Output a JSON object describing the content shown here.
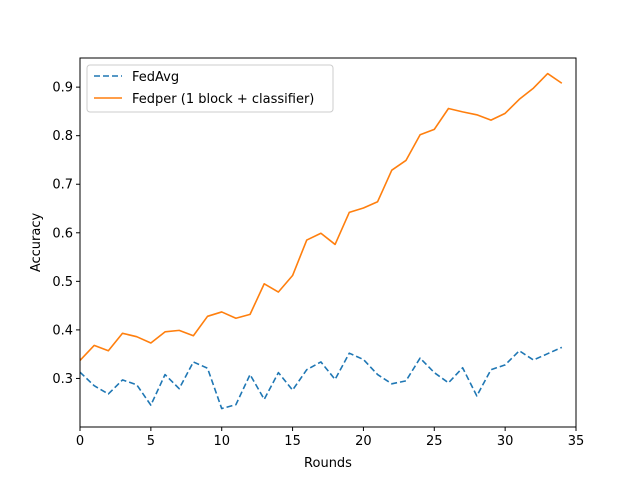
{
  "chart_data": {
    "type": "line",
    "title": "",
    "xlabel": "Rounds",
    "ylabel": "Accuracy",
    "xlim": [
      0,
      35
    ],
    "ylim": [
      0.2,
      0.96
    ],
    "xticks": [
      0,
      5,
      10,
      15,
      20,
      25,
      30,
      35
    ],
    "xtick_labels": [
      "0",
      "5",
      "10",
      "15",
      "20",
      "25",
      "30",
      "35"
    ],
    "yticks": [
      0.3,
      0.4,
      0.5,
      0.6,
      0.7,
      0.8,
      0.9
    ],
    "ytick_labels": [
      "0.3",
      "0.4",
      "0.5",
      "0.6",
      "0.7",
      "0.8",
      "0.9"
    ],
    "grid": false,
    "legend_position": "top-left",
    "x": [
      0,
      1,
      2,
      3,
      4,
      5,
      6,
      7,
      8,
      9,
      10,
      11,
      12,
      13,
      14,
      15,
      16,
      17,
      18,
      19,
      20,
      21,
      22,
      23,
      24,
      25,
      26,
      27,
      28,
      29,
      30,
      31,
      32,
      33,
      34
    ],
    "series": [
      {
        "name": "FedAvg",
        "color": "#1f77b4",
        "style": "dashed",
        "values": [
          0.313,
          0.285,
          0.268,
          0.297,
          0.287,
          0.245,
          0.308,
          0.279,
          0.334,
          0.321,
          0.238,
          0.246,
          0.308,
          0.257,
          0.312,
          0.276,
          0.318,
          0.334,
          0.298,
          0.352,
          0.339,
          0.308,
          0.289,
          0.295,
          0.342,
          0.312,
          0.291,
          0.322,
          0.264,
          0.318,
          0.328,
          0.357,
          0.338,
          0.351,
          0.364
        ]
      },
      {
        "name": "Fedper (1 block + classifier)",
        "color": "#ff7f0e",
        "style": "solid",
        "values": [
          0.337,
          0.368,
          0.357,
          0.393,
          0.386,
          0.373,
          0.396,
          0.399,
          0.388,
          0.428,
          0.437,
          0.424,
          0.432,
          0.495,
          0.478,
          0.512,
          0.585,
          0.599,
          0.576,
          0.642,
          0.651,
          0.664,
          0.729,
          0.749,
          0.802,
          0.813,
          0.856,
          0.849,
          0.843,
          0.832,
          0.846,
          0.875,
          0.898,
          0.928,
          0.908
        ]
      }
    ]
  }
}
